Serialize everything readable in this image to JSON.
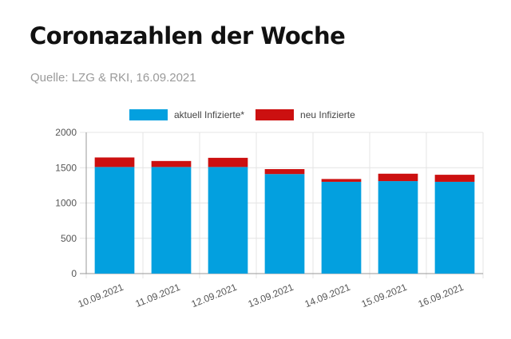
{
  "header": {
    "title": "Coronazahlen der Woche",
    "source": "Quelle: LZG & RKI, 16.09.2021"
  },
  "colors": {
    "current": "#03a0df",
    "new": "#cc1010",
    "grid": "#e4e4e4",
    "axis": "#999999"
  },
  "chart_data": {
    "type": "bar",
    "stacked": true,
    "title": "Coronazahlen der Woche",
    "subtitle": "Quelle: LZG & RKI, 16.09.2021",
    "xlabel": "",
    "ylabel": "",
    "ylim": [
      0,
      2000
    ],
    "yticks": [
      0,
      500,
      1000,
      1500,
      2000
    ],
    "grid": true,
    "legend_position": "top",
    "categories": [
      "10.09.2021",
      "11.09.2021",
      "12.09.2021",
      "13.09.2021",
      "14.09.2021",
      "15.09.2021",
      "16.09.2021"
    ],
    "series": [
      {
        "name": "aktuell Infizierte*",
        "values": [
          1510,
          1510,
          1510,
          1410,
          1300,
          1310,
          1300
        ]
      },
      {
        "name": "neu Infizierte",
        "values": [
          135,
          85,
          130,
          70,
          40,
          105,
          100
        ]
      }
    ]
  }
}
